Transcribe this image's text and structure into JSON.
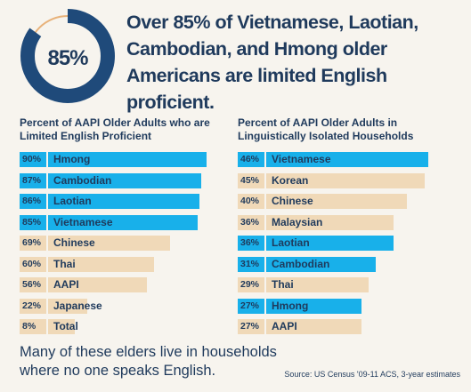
{
  "headline": {
    "big_stat": "85%",
    "big_stat_value": 85,
    "text": "Over 85% of Vietnamese, Laotian, Cambodian, and Hmong older Americans are limited English proficient."
  },
  "colors": {
    "highlight": "#18b0ea",
    "other": "#f0d9b8",
    "navy": "#1f4a7a",
    "text": "#1f3a5c"
  },
  "chart_data": [
    {
      "type": "bar",
      "title": "Percent of AAPI Older Adults who are Limited  English Proficient",
      "categories": [
        "Hmong",
        "Cambodian",
        "Laotian",
        "Vietnamese",
        "Chinese",
        "Thai",
        "AAPI",
        "Japanese",
        "Total"
      ],
      "values": [
        90,
        87,
        86,
        85,
        69,
        60,
        56,
        22,
        8
      ],
      "value_labels": [
        "90%",
        "87%",
        "86%",
        "85%",
        "69%",
        "60%",
        "56%",
        "22%",
        "8%"
      ],
      "highlighted": [
        true,
        true,
        true,
        true,
        false,
        false,
        false,
        false,
        false
      ],
      "xlim": [
        0,
        100
      ]
    },
    {
      "type": "bar",
      "title": "Percent of AAPI Older Adults in Linguistically Isolated Households",
      "categories": [
        "Vietnamese",
        "Korean",
        "Chinese",
        "Malaysian",
        "Laotian",
        "Cambodian",
        "Thai",
        "Hmong",
        "AAPI"
      ],
      "values": [
        46,
        45,
        40,
        36,
        36,
        31,
        29,
        27,
        27
      ],
      "value_labels": [
        "46%",
        "45%",
        "40%",
        "36%",
        "36%",
        "31%",
        "29%",
        "27%",
        "27%"
      ],
      "highlighted": [
        true,
        false,
        false,
        false,
        true,
        true,
        false,
        true,
        false
      ],
      "xlim": [
        0,
        50
      ]
    }
  ],
  "footer": {
    "note": "Many of these elders live in households where no one speaks English.",
    "source": "Source: US Census '09-11 ACS, 3-year estimates"
  }
}
